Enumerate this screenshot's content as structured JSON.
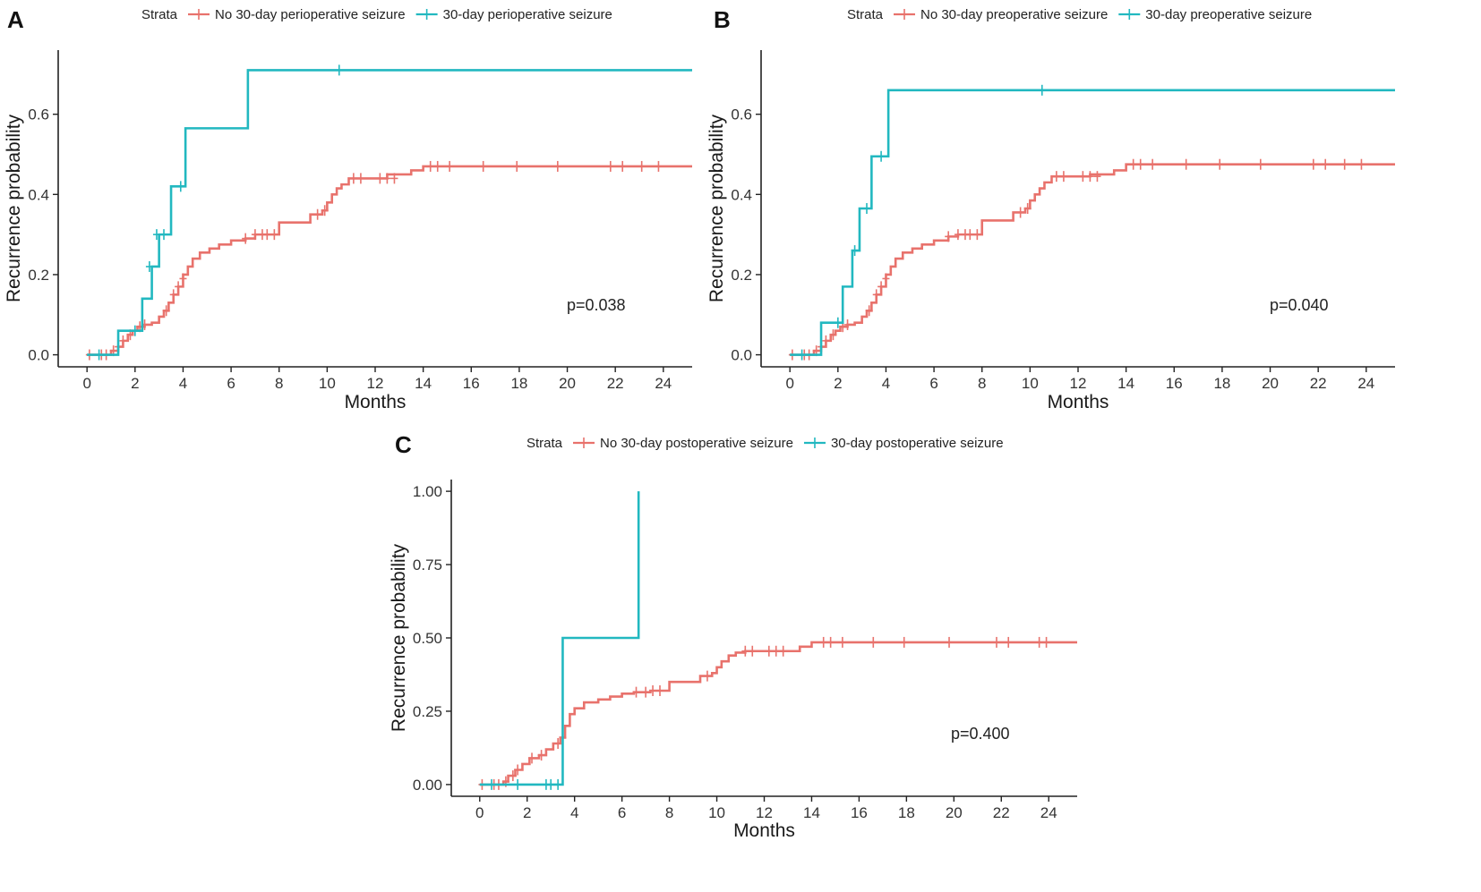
{
  "chart_data": [
    {
      "type": "line",
      "panel": "A",
      "legend_title": "Strata",
      "xlabel": "Months",
      "ylabel": "Recurrence probability",
      "xlim": [
        -1.2,
        25.2
      ],
      "ylim": [
        -0.03,
        0.76
      ],
      "xticks": [
        0,
        2,
        4,
        6,
        8,
        10,
        12,
        14,
        16,
        18,
        20,
        22,
        24
      ],
      "yticks": [
        0.0,
        0.2,
        0.4,
        0.6
      ],
      "ytick_labels": [
        "0.0",
        "0.2",
        "0.4",
        "0.6"
      ],
      "annotation": "p=0.038",
      "series": [
        {
          "name": "No 30-day perioperative seizure",
          "color": "#e8726c",
          "steps": [
            [
              0,
              0
            ],
            [
              1.0,
              0.01
            ],
            [
              1.3,
              0.02
            ],
            [
              1.5,
              0.035
            ],
            [
              1.7,
              0.05
            ],
            [
              1.9,
              0.06
            ],
            [
              2.1,
              0.07
            ],
            [
              2.4,
              0.075
            ],
            [
              2.7,
              0.08
            ],
            [
              3.0,
              0.095
            ],
            [
              3.2,
              0.11
            ],
            [
              3.4,
              0.13
            ],
            [
              3.6,
              0.15
            ],
            [
              3.8,
              0.17
            ],
            [
              4.0,
              0.2
            ],
            [
              4.2,
              0.22
            ],
            [
              4.4,
              0.24
            ],
            [
              4.7,
              0.255
            ],
            [
              5.1,
              0.265
            ],
            [
              5.5,
              0.275
            ],
            [
              6.0,
              0.285
            ],
            [
              6.6,
              0.29
            ],
            [
              7.0,
              0.3
            ],
            [
              8.0,
              0.33
            ],
            [
              9.3,
              0.35
            ],
            [
              9.8,
              0.36
            ],
            [
              10.0,
              0.38
            ],
            [
              10.2,
              0.4
            ],
            [
              10.4,
              0.415
            ],
            [
              10.6,
              0.425
            ],
            [
              10.9,
              0.44
            ],
            [
              12.5,
              0.45
            ],
            [
              13.5,
              0.46
            ],
            [
              14.0,
              0.47
            ],
            [
              25.2,
              0.47
            ]
          ],
          "censored": [
            [
              0.1,
              0
            ],
            [
              0.6,
              0
            ],
            [
              0.8,
              0
            ],
            [
              1.1,
              0.01
            ],
            [
              1.3,
              0.02
            ],
            [
              1.5,
              0.035
            ],
            [
              1.8,
              0.05
            ],
            [
              2.2,
              0.07
            ],
            [
              2.4,
              0.075
            ],
            [
              3.3,
              0.11
            ],
            [
              3.6,
              0.15
            ],
            [
              3.8,
              0.17
            ],
            [
              4.0,
              0.19
            ],
            [
              6.6,
              0.29
            ],
            [
              7.0,
              0.3
            ],
            [
              7.3,
              0.3
            ],
            [
              7.5,
              0.3
            ],
            [
              7.8,
              0.3
            ],
            [
              9.6,
              0.35
            ],
            [
              9.9,
              0.36
            ],
            [
              11.1,
              0.44
            ],
            [
              11.4,
              0.44
            ],
            [
              12.2,
              0.44
            ],
            [
              12.5,
              0.44
            ],
            [
              12.8,
              0.44
            ],
            [
              14.3,
              0.47
            ],
            [
              14.6,
              0.47
            ],
            [
              15.1,
              0.47
            ],
            [
              16.5,
              0.47
            ],
            [
              17.9,
              0.47
            ],
            [
              19.6,
              0.47
            ],
            [
              21.8,
              0.47
            ],
            [
              22.3,
              0.47
            ],
            [
              23.1,
              0.47
            ],
            [
              23.8,
              0.47
            ]
          ]
        },
        {
          "name": "30-day perioperative seizure",
          "color": "#22b8c0",
          "steps": [
            [
              0,
              0
            ],
            [
              1.3,
              0.06
            ],
            [
              2.3,
              0.14
            ],
            [
              2.7,
              0.22
            ],
            [
              3.0,
              0.3
            ],
            [
              3.5,
              0.42
            ],
            [
              4.1,
              0.565
            ],
            [
              6.7,
              0.71
            ],
            [
              25.2,
              0.71
            ]
          ],
          "censored": [
            [
              0.5,
              0
            ],
            [
              2.0,
              0.06
            ],
            [
              2.6,
              0.22
            ],
            [
              2.9,
              0.3
            ],
            [
              3.2,
              0.3
            ],
            [
              3.9,
              0.42
            ],
            [
              10.5,
              0.71
            ]
          ]
        }
      ]
    },
    {
      "type": "line",
      "panel": "B",
      "legend_title": "Strata",
      "xlabel": "Months",
      "ylabel": "Recurrence probability",
      "xlim": [
        -1.2,
        25.2
      ],
      "ylim": [
        -0.03,
        0.76
      ],
      "xticks": [
        0,
        2,
        4,
        6,
        8,
        10,
        12,
        14,
        16,
        18,
        20,
        22,
        24
      ],
      "yticks": [
        0.0,
        0.2,
        0.4,
        0.6
      ],
      "ytick_labels": [
        "0.0",
        "0.2",
        "0.4",
        "0.6"
      ],
      "annotation": "p=0.040",
      "series": [
        {
          "name": "No 30-day preoperative seizure",
          "color": "#e8726c",
          "steps": [
            [
              0,
              0
            ],
            [
              1.0,
              0.01
            ],
            [
              1.3,
              0.02
            ],
            [
              1.5,
              0.035
            ],
            [
              1.7,
              0.05
            ],
            [
              1.9,
              0.06
            ],
            [
              2.1,
              0.07
            ],
            [
              2.4,
              0.075
            ],
            [
              2.7,
              0.08
            ],
            [
              3.0,
              0.095
            ],
            [
              3.2,
              0.11
            ],
            [
              3.4,
              0.13
            ],
            [
              3.6,
              0.15
            ],
            [
              3.8,
              0.17
            ],
            [
              4.0,
              0.2
            ],
            [
              4.2,
              0.22
            ],
            [
              4.4,
              0.24
            ],
            [
              4.7,
              0.255
            ],
            [
              5.1,
              0.265
            ],
            [
              5.5,
              0.275
            ],
            [
              6.0,
              0.285
            ],
            [
              6.6,
              0.295
            ],
            [
              7.0,
              0.3
            ],
            [
              8.0,
              0.335
            ],
            [
              9.3,
              0.355
            ],
            [
              9.8,
              0.365
            ],
            [
              10.0,
              0.385
            ],
            [
              10.2,
              0.4
            ],
            [
              10.4,
              0.415
            ],
            [
              10.6,
              0.43
            ],
            [
              10.9,
              0.445
            ],
            [
              12.5,
              0.45
            ],
            [
              13.5,
              0.46
            ],
            [
              14.0,
              0.475
            ],
            [
              25.2,
              0.475
            ]
          ],
          "censored": [
            [
              0.1,
              0
            ],
            [
              0.6,
              0
            ],
            [
              0.8,
              0
            ],
            [
              1.1,
              0.01
            ],
            [
              1.3,
              0.02
            ],
            [
              1.5,
              0.035
            ],
            [
              1.8,
              0.05
            ],
            [
              2.2,
              0.07
            ],
            [
              2.4,
              0.075
            ],
            [
              3.3,
              0.11
            ],
            [
              3.6,
              0.15
            ],
            [
              3.8,
              0.17
            ],
            [
              4.0,
              0.19
            ],
            [
              6.6,
              0.295
            ],
            [
              7.0,
              0.3
            ],
            [
              7.3,
              0.3
            ],
            [
              7.5,
              0.3
            ],
            [
              7.8,
              0.3
            ],
            [
              9.6,
              0.355
            ],
            [
              9.9,
              0.365
            ],
            [
              11.1,
              0.445
            ],
            [
              11.4,
              0.445
            ],
            [
              12.2,
              0.445
            ],
            [
              12.5,
              0.445
            ],
            [
              12.8,
              0.445
            ],
            [
              14.3,
              0.475
            ],
            [
              14.6,
              0.475
            ],
            [
              15.1,
              0.475
            ],
            [
              16.5,
              0.475
            ],
            [
              17.9,
              0.475
            ],
            [
              19.6,
              0.475
            ],
            [
              21.8,
              0.475
            ],
            [
              22.3,
              0.475
            ],
            [
              23.1,
              0.475
            ],
            [
              23.8,
              0.475
            ]
          ]
        },
        {
          "name": "30-day preoperative seizure",
          "color": "#22b8c0",
          "steps": [
            [
              0,
              0
            ],
            [
              1.3,
              0.08
            ],
            [
              2.2,
              0.17
            ],
            [
              2.6,
              0.26
            ],
            [
              2.9,
              0.365
            ],
            [
              3.4,
              0.495
            ],
            [
              4.1,
              0.66
            ],
            [
              25.2,
              0.66
            ]
          ],
          "censored": [
            [
              0.5,
              0
            ],
            [
              2.0,
              0.08
            ],
            [
              2.7,
              0.26
            ],
            [
              3.2,
              0.365
            ],
            [
              3.8,
              0.495
            ],
            [
              10.5,
              0.66
            ]
          ]
        }
      ]
    },
    {
      "type": "line",
      "panel": "C",
      "legend_title": "Strata",
      "xlabel": "Months",
      "ylabel": "Recurrence probability",
      "xlim": [
        -1.2,
        25.2
      ],
      "ylim": [
        -0.04,
        1.04
      ],
      "xticks": [
        0,
        2,
        4,
        6,
        8,
        10,
        12,
        14,
        16,
        18,
        20,
        22,
        24
      ],
      "yticks": [
        0.0,
        0.25,
        0.5,
        0.75,
        1.0
      ],
      "ytick_labels": [
        "0.00",
        "0.25",
        "0.50",
        "0.75",
        "1.00"
      ],
      "annotation": "p=0.400",
      "series": [
        {
          "name": "No 30-day postoperative seizure",
          "color": "#e8726c",
          "steps": [
            [
              0,
              0
            ],
            [
              1.0,
              0.01
            ],
            [
              1.2,
              0.03
            ],
            [
              1.5,
              0.05
            ],
            [
              1.8,
              0.07
            ],
            [
              2.1,
              0.09
            ],
            [
              2.5,
              0.1
            ],
            [
              2.8,
              0.12
            ],
            [
              3.1,
              0.14
            ],
            [
              3.4,
              0.16
            ],
            [
              3.6,
              0.2
            ],
            [
              3.8,
              0.24
            ],
            [
              4.0,
              0.26
            ],
            [
              4.4,
              0.28
            ],
            [
              5.0,
              0.29
            ],
            [
              5.5,
              0.3
            ],
            [
              6.0,
              0.31
            ],
            [
              6.5,
              0.315
            ],
            [
              7.2,
              0.32
            ],
            [
              8.0,
              0.35
            ],
            [
              9.3,
              0.37
            ],
            [
              9.8,
              0.38
            ],
            [
              10.0,
              0.4
            ],
            [
              10.2,
              0.42
            ],
            [
              10.5,
              0.44
            ],
            [
              10.8,
              0.45
            ],
            [
              11.2,
              0.455
            ],
            [
              13.5,
              0.47
            ],
            [
              14.0,
              0.485
            ],
            [
              25.2,
              0.485
            ]
          ],
          "censored": [
            [
              0.1,
              0
            ],
            [
              0.6,
              0
            ],
            [
              0.8,
              0
            ],
            [
              1.1,
              0.01
            ],
            [
              1.4,
              0.03
            ],
            [
              1.6,
              0.05
            ],
            [
              2.2,
              0.09
            ],
            [
              2.6,
              0.1
            ],
            [
              3.3,
              0.14
            ],
            [
              3.5,
              0.16
            ],
            [
              6.6,
              0.315
            ],
            [
              7.0,
              0.315
            ],
            [
              7.3,
              0.32
            ],
            [
              7.6,
              0.32
            ],
            [
              9.6,
              0.37
            ],
            [
              11.2,
              0.455
            ],
            [
              11.5,
              0.455
            ],
            [
              12.2,
              0.455
            ],
            [
              12.5,
              0.455
            ],
            [
              12.8,
              0.455
            ],
            [
              14.5,
              0.485
            ],
            [
              14.8,
              0.485
            ],
            [
              15.3,
              0.485
            ],
            [
              16.6,
              0.485
            ],
            [
              17.9,
              0.485
            ],
            [
              19.8,
              0.485
            ],
            [
              21.8,
              0.485
            ],
            [
              22.3,
              0.485
            ],
            [
              23.6,
              0.485
            ],
            [
              23.9,
              0.485
            ]
          ]
        },
        {
          "name": "30-day postoperative seizure",
          "color": "#22b8c0",
          "steps": [
            [
              0,
              0
            ],
            [
              3.5,
              0.5
            ],
            [
              6.7,
              1.0
            ]
          ],
          "censored": [
            [
              0.5,
              0
            ],
            [
              1.6,
              0
            ],
            [
              2.8,
              0
            ],
            [
              3.0,
              0
            ],
            [
              3.3,
              0
            ]
          ]
        }
      ]
    }
  ]
}
